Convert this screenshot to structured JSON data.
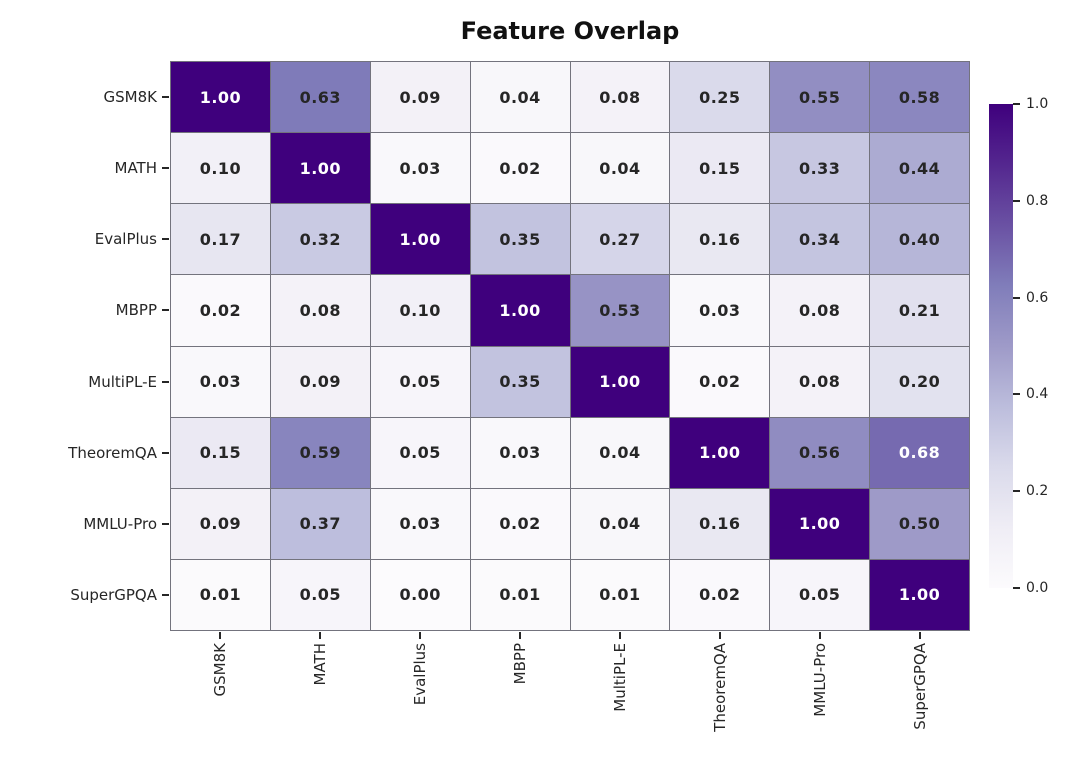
{
  "title": "Feature Overlap",
  "chart_data": {
    "type": "heatmap",
    "x_labels": [
      "GSM8K",
      "MATH",
      "EvalPlus",
      "MBPP",
      "MultiPL-E",
      "TheoremQA",
      "MMLU-Pro",
      "SuperGPQA"
    ],
    "y_labels": [
      "GSM8K",
      "MATH",
      "EvalPlus",
      "MBPP",
      "MultiPL-E",
      "TheoremQA",
      "MMLU-Pro",
      "SuperGPQA"
    ],
    "matrix": [
      [
        1.0,
        0.63,
        0.09,
        0.04,
        0.08,
        0.25,
        0.55,
        0.58
      ],
      [
        0.1,
        1.0,
        0.03,
        0.02,
        0.04,
        0.15,
        0.33,
        0.44
      ],
      [
        0.17,
        0.32,
        1.0,
        0.35,
        0.27,
        0.16,
        0.34,
        0.4
      ],
      [
        0.02,
        0.08,
        0.1,
        1.0,
        0.53,
        0.03,
        0.08,
        0.21
      ],
      [
        0.03,
        0.09,
        0.05,
        0.35,
        1.0,
        0.02,
        0.08,
        0.2
      ],
      [
        0.15,
        0.59,
        0.05,
        0.03,
        0.04,
        1.0,
        0.56,
        0.68
      ],
      [
        0.09,
        0.37,
        0.03,
        0.02,
        0.04,
        0.16,
        1.0,
        0.5
      ],
      [
        0.01,
        0.05,
        0.0,
        0.01,
        0.01,
        0.02,
        0.05,
        1.0
      ]
    ],
    "annotation_decimals": 2,
    "vmin": 0.0,
    "vmax": 1.0,
    "colormap": "Purples",
    "colorbar_ticks": [
      "1.0",
      "0.8",
      "0.6",
      "0.4",
      "0.2",
      "0.0"
    ],
    "colorbar_position": "right",
    "white_text_threshold": 0.65,
    "grid_lines": true
  },
  "colors": {
    "cmap_stops": [
      "#fcfbfd",
      "#efedf5",
      "#dadaeb",
      "#bcbddc",
      "#9e9ac8",
      "#807dba",
      "#6a51a3",
      "#54278f",
      "#3f007d"
    ],
    "grid_line": "#73737d",
    "annotation_dark": "#262626",
    "annotation_light": "#ffffff",
    "tick_label": "#262626",
    "title": "#111111",
    "background": "#ffffff"
  }
}
